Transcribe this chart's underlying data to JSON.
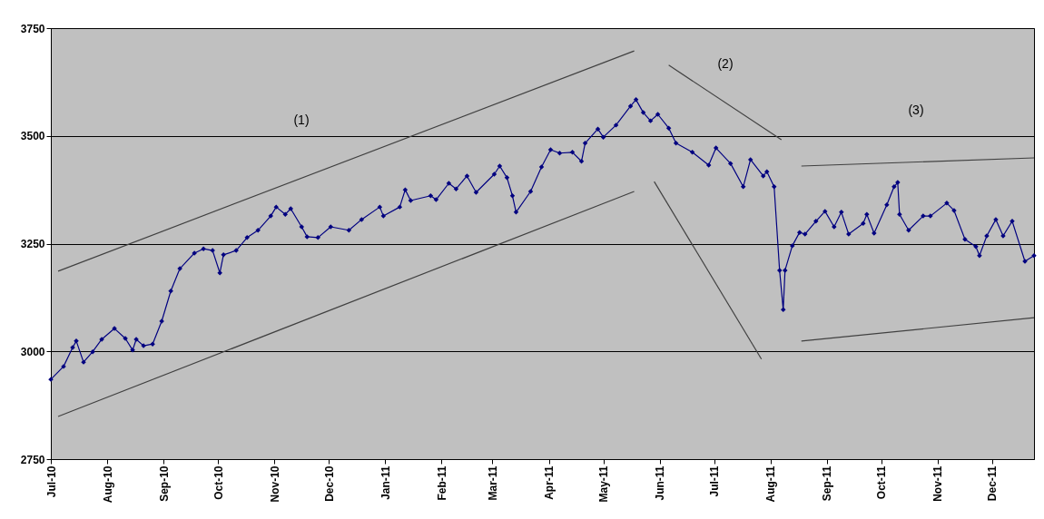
{
  "chart_data": {
    "type": "line",
    "xlim": [
      "2010-07-01",
      "2011-12-24"
    ],
    "xticks": [
      {
        "value": "2010-07-01",
        "label": "Jul-10"
      },
      {
        "value": "2010-08-01",
        "label": "Aug-10"
      },
      {
        "value": "2010-09-01",
        "label": "Sep-10"
      },
      {
        "value": "2010-10-01",
        "label": "Oct-10"
      },
      {
        "value": "2010-11-01",
        "label": "Nov-10"
      },
      {
        "value": "2010-12-01",
        "label": "Dec-10"
      },
      {
        "value": "2011-01-01",
        "label": "Jan-11"
      },
      {
        "value": "2011-02-01",
        "label": "Feb-11"
      },
      {
        "value": "2011-03-01",
        "label": "Mar-11"
      },
      {
        "value": "2011-04-01",
        "label": "Apr-11"
      },
      {
        "value": "2011-05-01",
        "label": "May-11"
      },
      {
        "value": "2011-06-01",
        "label": "Jun-11"
      },
      {
        "value": "2011-07-01",
        "label": "Jul-11"
      },
      {
        "value": "2011-08-01",
        "label": "Aug-11"
      },
      {
        "value": "2011-09-01",
        "label": "Sep-11"
      },
      {
        "value": "2011-10-01",
        "label": "Oct-11"
      },
      {
        "value": "2011-11-01",
        "label": "Nov-11"
      },
      {
        "value": "2011-12-01",
        "label": "Dec-11"
      }
    ],
    "ylim": [
      2750,
      3750
    ],
    "yticks": [
      2750,
      3000,
      3250,
      3500,
      3750
    ],
    "grid": "y",
    "series": [
      {
        "color": "#000080",
        "marker": "diamond",
        "line_style": "solid",
        "x": [
          "2010-07-01",
          "2010-07-08",
          "2010-07-13",
          "2010-07-15",
          "2010-07-19",
          "2010-07-24",
          "2010-07-29",
          "2010-08-05",
          "2010-08-11",
          "2010-08-15",
          "2010-08-17",
          "2010-08-21",
          "2010-08-26",
          "2010-08-31",
          "2010-09-05",
          "2010-09-10",
          "2010-09-18",
          "2010-09-23",
          "2010-09-28",
          "2010-10-02",
          "2010-10-04",
          "2010-10-11",
          "2010-10-17",
          "2010-10-23",
          "2010-10-30",
          "2010-11-02",
          "2010-11-07",
          "2010-11-10",
          "2010-11-16",
          "2010-11-19",
          "2010-11-25",
          "2010-12-02",
          "2010-12-12",
          "2010-12-19",
          "2010-12-29",
          "2010-12-31",
          "2011-01-09",
          "2011-01-12",
          "2011-01-15",
          "2011-01-26",
          "2011-01-29",
          "2011-02-05",
          "2011-02-09",
          "2011-02-15",
          "2011-02-20",
          "2011-03-02",
          "2011-03-05",
          "2011-03-09",
          "2011-03-12",
          "2011-03-14",
          "2011-03-22",
          "2011-03-28",
          "2011-04-02",
          "2011-04-07",
          "2011-04-14",
          "2011-04-19",
          "2011-04-21",
          "2011-04-28",
          "2011-05-01",
          "2011-05-08",
          "2011-05-16",
          "2011-05-19",
          "2011-05-23",
          "2011-05-27",
          "2011-05-31",
          "2011-06-06",
          "2011-06-10",
          "2011-06-19",
          "2011-06-28",
          "2011-07-02",
          "2011-07-10",
          "2011-07-17",
          "2011-07-21",
          "2011-07-28",
          "2011-07-30",
          "2011-08-03",
          "2011-08-06",
          "2011-08-08",
          "2011-08-09",
          "2011-08-13",
          "2011-08-17",
          "2011-08-20",
          "2011-08-26",
          "2011-08-31",
          "2011-09-05",
          "2011-09-09",
          "2011-09-13",
          "2011-09-21",
          "2011-09-23",
          "2011-09-27",
          "2011-10-04",
          "2011-10-08",
          "2011-10-10",
          "2011-10-11",
          "2011-10-16",
          "2011-10-24",
          "2011-10-28",
          "2011-11-06",
          "2011-11-10",
          "2011-11-16",
          "2011-11-22",
          "2011-11-24",
          "2011-11-28",
          "2011-12-03",
          "2011-12-07",
          "2011-12-12",
          "2011-12-19",
          "2011-12-24"
        ],
        "values": [
          2935,
          2965,
          3009,
          3024,
          2975,
          2999,
          3028,
          3053,
          3030,
          3003,
          3028,
          3013,
          3017,
          3070,
          3140,
          3192,
          3228,
          3238,
          3234,
          3182,
          3224,
          3234,
          3264,
          3281,
          3314,
          3335,
          3318,
          3331,
          3289,
          3266,
          3264,
          3289,
          3281,
          3306,
          3335,
          3314,
          3335,
          3375,
          3350,
          3361,
          3352,
          3390,
          3377,
          3407,
          3369,
          3411,
          3430,
          3403,
          3361,
          3323,
          3371,
          3428,
          3468,
          3460,
          3462,
          3441,
          3483,
          3516,
          3497,
          3525,
          3569,
          3584,
          3554,
          3535,
          3550,
          3518,
          3483,
          3462,
          3432,
          3472,
          3436,
          3382,
          3445,
          3407,
          3417,
          3382,
          3188,
          3097,
          3188,
          3245,
          3276,
          3272,
          3302,
          3325,
          3289,
          3323,
          3272,
          3297,
          3318,
          3274,
          3340,
          3382,
          3392,
          3318,
          3281,
          3314,
          3314,
          3344,
          3327,
          3260,
          3243,
          3222,
          3268,
          3306,
          3268,
          3302,
          3209,
          3222
        ]
      },
      {
        "type": "line",
        "color": "#404040",
        "marker": "none",
        "line_style": "solid",
        "x": [
          "2010-07-05",
          "2011-05-18"
        ],
        "values": [
          3186,
          3697
        ]
      },
      {
        "type": "line",
        "color": "#404040",
        "marker": "none",
        "line_style": "solid",
        "x": [
          "2010-07-05",
          "2011-05-18"
        ],
        "values": [
          2849,
          3371
        ]
      },
      {
        "type": "line",
        "color": "#404040",
        "marker": "none",
        "line_style": "solid",
        "x": [
          "2011-06-06",
          "2011-08-07"
        ],
        "values": [
          3664,
          3491
        ]
      },
      {
        "type": "line",
        "color": "#404040",
        "marker": "none",
        "line_style": "solid",
        "x": [
          "2011-05-29",
          "2011-07-27"
        ],
        "values": [
          3394,
          2982
        ]
      },
      {
        "type": "line",
        "color": "#404040",
        "marker": "none",
        "line_style": "solid",
        "x": [
          "2011-08-18",
          "2011-12-24"
        ],
        "values": [
          3430,
          3449
        ]
      },
      {
        "type": "line",
        "color": "#404040",
        "marker": "none",
        "line_style": "solid",
        "x": [
          "2011-08-18",
          "2011-12-24"
        ],
        "values": [
          3024,
          3078
        ]
      }
    ],
    "annotations": [
      "(1)",
      "(2)",
      "(3)"
    ]
  }
}
